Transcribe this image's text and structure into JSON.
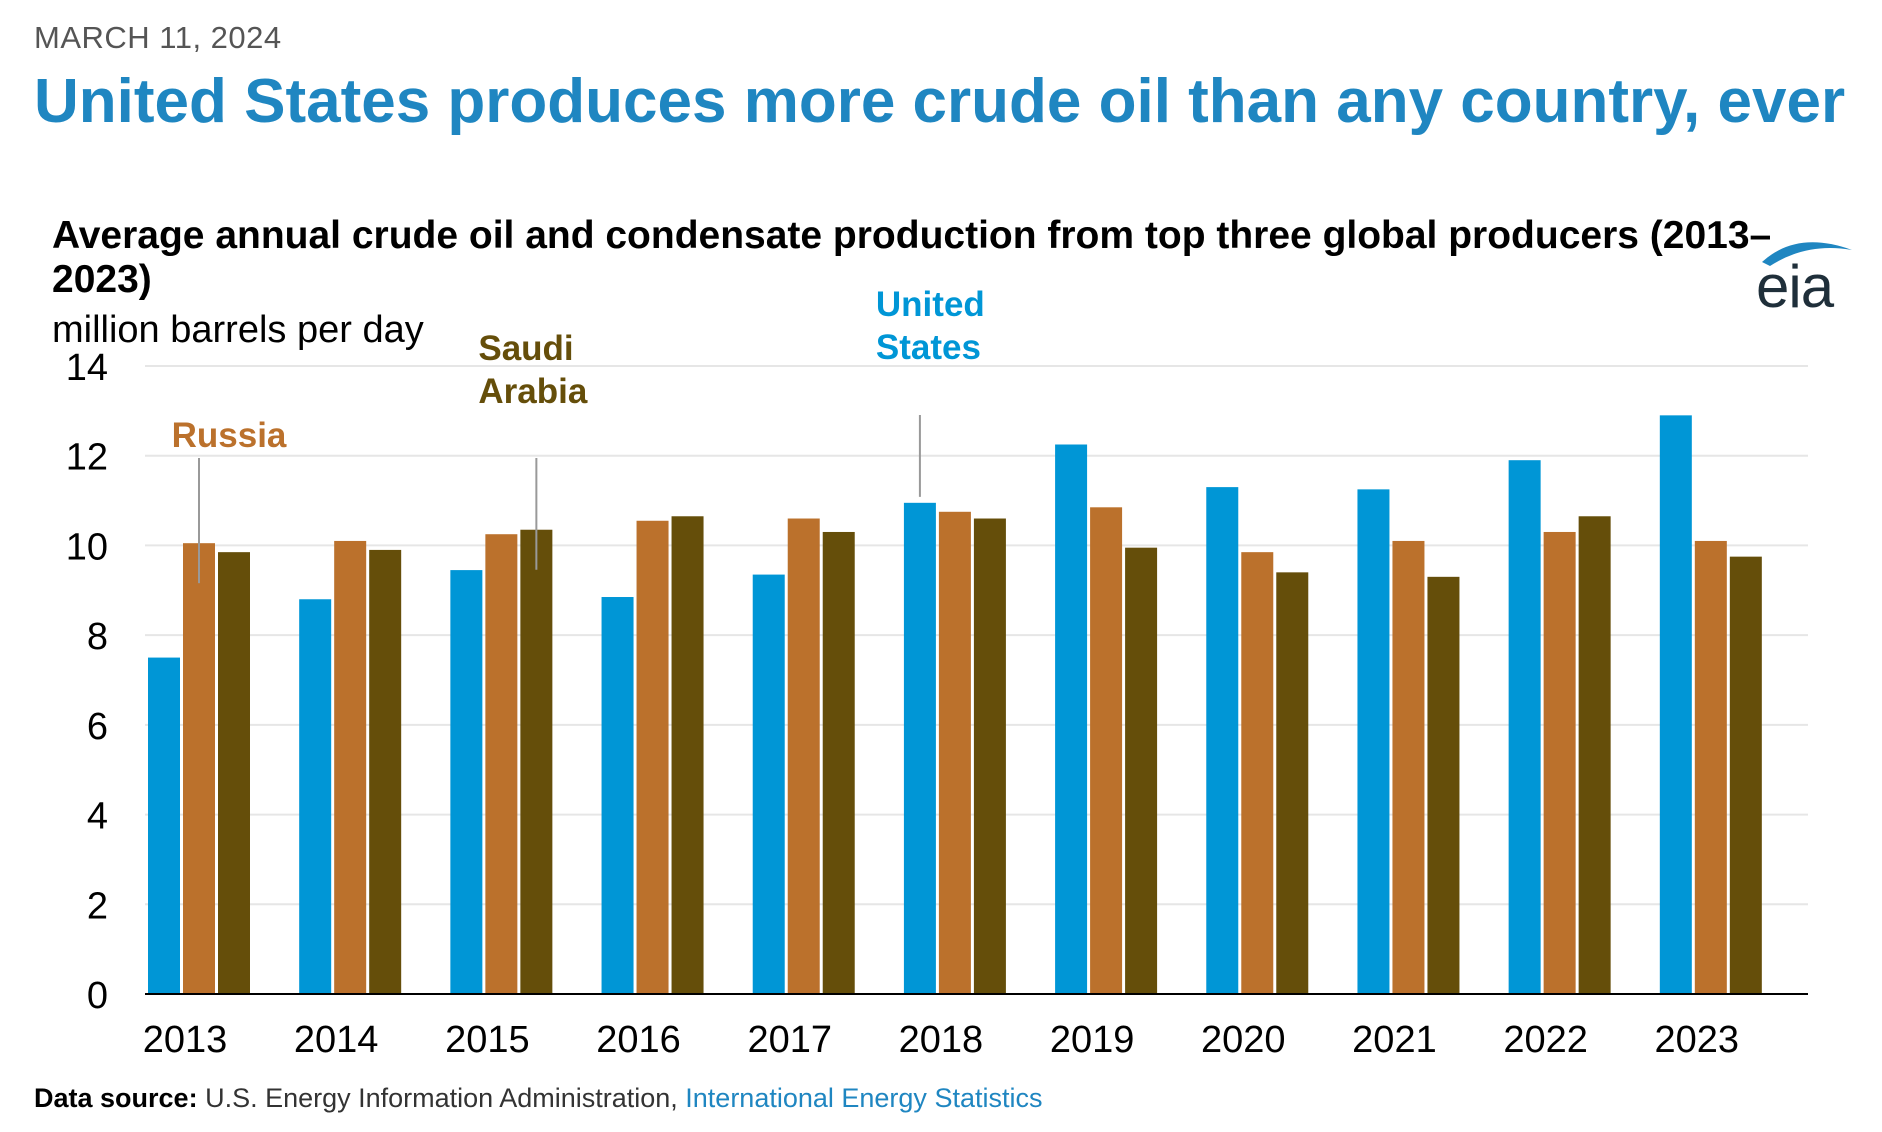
{
  "header": {
    "date": "MARCH 11, 2024",
    "headline": "United States produces more crude oil than any country, ever"
  },
  "logo": {
    "text": "eia",
    "icon": "eia-logo-swoosh-icon"
  },
  "footer": {
    "source_label": "Data source:",
    "source_text": " U.S. Energy Information Administration, ",
    "source_link": "International Energy Statistics"
  },
  "chart_data": {
    "type": "bar",
    "title": "Average annual crude oil and condensate production from top three global producers (2013–2023)",
    "ylabel": "million barrels per day",
    "xlabel": "",
    "ylim": [
      0,
      14
    ],
    "yticks": [
      "0",
      "2",
      "4",
      "6",
      "8",
      "10",
      "12",
      "14"
    ],
    "grid": true,
    "categories": [
      "2013",
      "2014",
      "2015",
      "2016",
      "2017",
      "2018",
      "2019",
      "2020",
      "2021",
      "2022",
      "2023"
    ],
    "series": [
      {
        "name": "United States",
        "label_lines": [
          "United",
          "States"
        ],
        "color": "#0096d6",
        "values": [
          7.5,
          8.8,
          9.45,
          8.85,
          9.35,
          10.95,
          12.25,
          11.3,
          11.25,
          11.9,
          12.9
        ]
      },
      {
        "name": "Russia",
        "label_lines": [
          "Russia"
        ],
        "color": "#bb712c",
        "values": [
          10.05,
          10.1,
          10.25,
          10.55,
          10.6,
          10.75,
          10.85,
          9.85,
          10.1,
          10.3,
          10.1
        ]
      },
      {
        "name": "Saudi Arabia",
        "label_lines": [
          "Saudi",
          "Arabia"
        ],
        "color": "#654e0a",
        "values": [
          9.85,
          9.9,
          10.35,
          10.65,
          10.3,
          10.6,
          9.95,
          9.4,
          9.3,
          10.65,
          9.75
        ]
      }
    ],
    "annotations": [
      {
        "series": "Russia",
        "category": "2013"
      },
      {
        "series": "Saudi Arabia",
        "category": "2015"
      },
      {
        "series": "United States",
        "category": "2018"
      }
    ]
  }
}
